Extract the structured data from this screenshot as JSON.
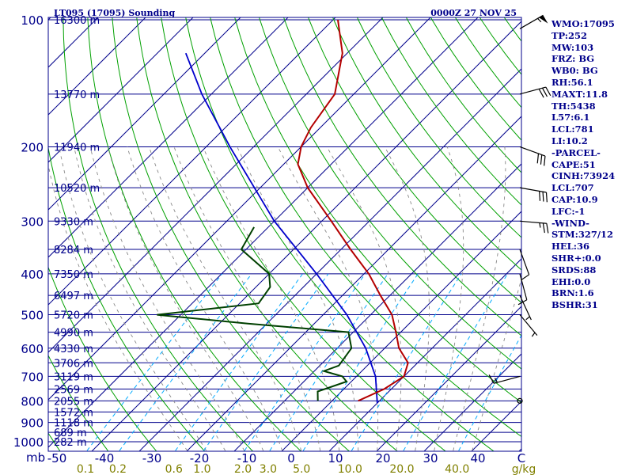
{
  "header": {
    "station": "LT095 (17095) Sounding",
    "time": "0000Z 27 NOV 25"
  },
  "stats": [
    "WMO:17095",
    "TP:252",
    "MW:103",
    "FRZ: BG",
    "WB0: BG",
    "RH:56.1",
    "MAXT:11.8",
    "TH:5438",
    "L57:6.1",
    "LCL:781",
    "LI:10.2",
    "-PARCEL-",
    "CAPE:51",
    "CINH:73924",
    "LCL:707",
    "CAP:10.9",
    "LFC:-1",
    "-WIND-",
    "STM:327/12",
    "HEL:36",
    "SHR+:0.0",
    "SRDS:88",
    "EHI:0.0",
    "BRN:1.6",
    "BSHR:31"
  ],
  "colors": {
    "pressure_lines": "#00008b",
    "isotherms": "#00008b",
    "dry_adiabats": "#00a000",
    "moist_adiabats": "#888888",
    "mixing_ratio": "#00aaff",
    "temperature": "#b40000",
    "dewpoint": "#004000",
    "parcel": "#0000cc",
    "text": "#00008b",
    "axis_text": "#00008b",
    "mixing_text": "#808000"
  },
  "chart_data": {
    "type": "skew-t",
    "pressure_levels_hPa": [
      100,
      200,
      300,
      400,
      500,
      600,
      700,
      800,
      900,
      1000
    ],
    "pressure_tick_labels": [
      "100",
      "200",
      "300",
      "400",
      "500",
      "600",
      "700",
      "800",
      "900",
      "1000"
    ],
    "pressure_unit": "mb",
    "temperature_tick_labels": [
      "-50",
      "-40",
      "-30",
      "-20",
      "-10",
      "0",
      "10",
      "20",
      "30",
      "40"
    ],
    "temperature_ticks_C": [
      -50,
      -40,
      -30,
      -20,
      -10,
      0,
      10,
      20,
      30,
      40
    ],
    "temperature_ticks_skew": [
      -50,
      -40,
      -30,
      -20,
      -10,
      0,
      10,
      20,
      30,
      40
    ],
    "height_levels": [
      {
        "label": "16300 m",
        "p": 100
      },
      {
        "label": "13770 m",
        "p": 150
      },
      {
        "label": "11940 m",
        "p": 200
      },
      {
        "label": "10520 m",
        "p": 250
      },
      {
        "label": "9330 m",
        "p": 300
      },
      {
        "label": "8284 m",
        "p": 350
      },
      {
        "label": "7350 m",
        "p": 400
      },
      {
        "label": "6497 m",
        "p": 450
      },
      {
        "label": "5720 m",
        "p": 500
      },
      {
        "label": "4990 m",
        "p": 550
      },
      {
        "label": "4330 m",
        "p": 600
      },
      {
        "label": "3706 m",
        "p": 650
      },
      {
        "label": "3119 m",
        "p": 700
      },
      {
        "label": "2569 m",
        "p": 750
      },
      {
        "label": "2055 m",
        "p": 800
      },
      {
        "label": "1572 m",
        "p": 850
      },
      {
        "label": "1118 m",
        "p": 900
      },
      {
        "label": "689 m",
        "p": 950
      },
      {
        "label": "282 m",
        "p": 1000
      }
    ],
    "mixing_ratio_labels": [
      "0.1",
      "0.2",
      "0.6",
      "1.0",
      "2.0",
      "3.0",
      "5.0",
      "10.0",
      "20.0",
      "40.0"
    ],
    "mixing_ratio_values": [
      0.1,
      0.2,
      0.6,
      1.0,
      2.0,
      3.0,
      5.0,
      10.0,
      20.0,
      40.0
    ],
    "mixing_ratio_unit": "g/kg",
    "corner_label": "C",
    "temperature": [
      {
        "p": 800,
        "t": 5.5
      },
      {
        "p": 750,
        "t": 8.5
      },
      {
        "p": 700,
        "t": 10.0
      },
      {
        "p": 650,
        "t": 8.0
      },
      {
        "p": 600,
        "t": 3.0
      },
      {
        "p": 550,
        "t": -1.0
      },
      {
        "p": 500,
        "t": -5.5
      },
      {
        "p": 450,
        "t": -12.0
      },
      {
        "p": 400,
        "t": -19.0
      },
      {
        "p": 350,
        "t": -28.0
      },
      {
        "p": 300,
        "t": -38.0
      },
      {
        "p": 250,
        "t": -50.0
      },
      {
        "p": 220,
        "t": -57.0
      },
      {
        "p": 200,
        "t": -60.0
      },
      {
        "p": 180,
        "t": -62.0
      },
      {
        "p": 150,
        "t": -64.0
      },
      {
        "p": 120,
        "t": -71.0
      },
      {
        "p": 100,
        "t": -79.0
      }
    ],
    "dewpoint": [
      {
        "p": 800,
        "t": -3.0
      },
      {
        "p": 760,
        "t": -5.0
      },
      {
        "p": 720,
        "t": -1.0
      },
      {
        "p": 700,
        "t": -3.0
      },
      {
        "p": 680,
        "t": -8.0
      },
      {
        "p": 660,
        "t": -6.0
      },
      {
        "p": 600,
        "t": -7.0
      },
      {
        "p": 550,
        "t": -11.0
      },
      {
        "p": 525,
        "t": -34.0
      },
      {
        "p": 500,
        "t": -55.0
      },
      {
        "p": 470,
        "t": -36.0
      },
      {
        "p": 430,
        "t": -37.0
      },
      {
        "p": 400,
        "t": -40.0
      },
      {
        "p": 350,
        "t": -51.0
      },
      {
        "p": 310,
        "t": -53.0
      }
    ],
    "parcel": [
      {
        "p": 810,
        "t": 10.0
      },
      {
        "p": 700,
        "t": 4.0
      },
      {
        "p": 600,
        "t": -4.0
      },
      {
        "p": 500,
        "t": -15.0
      },
      {
        "p": 400,
        "t": -30.0
      },
      {
        "p": 300,
        "t": -50.0
      },
      {
        "p": 200,
        "t": -75.0
      },
      {
        "p": 150,
        "t": -92.0
      },
      {
        "p": 120,
        "t": -104.0
      }
    ],
    "winds": [
      {
        "p": 105,
        "dir": 60,
        "spd": 55
      },
      {
        "p": 150,
        "dir": 75,
        "spd": 30
      },
      {
        "p": 200,
        "dir": 110,
        "spd": 30
      },
      {
        "p": 250,
        "dir": 100,
        "spd": 30
      },
      {
        "p": 300,
        "dir": 95,
        "spd": 25
      },
      {
        "p": 350,
        "dir": 160,
        "spd": 10
      },
      {
        "p": 400,
        "dir": 165,
        "spd": 10
      },
      {
        "p": 450,
        "dir": 155,
        "spd": 5
      },
      {
        "p": 500,
        "dir": 140,
        "spd": 5
      },
      {
        "p": 700,
        "dir": 255,
        "spd": 15
      },
      {
        "p": 800,
        "dir": 0,
        "spd": 0
      }
    ]
  }
}
